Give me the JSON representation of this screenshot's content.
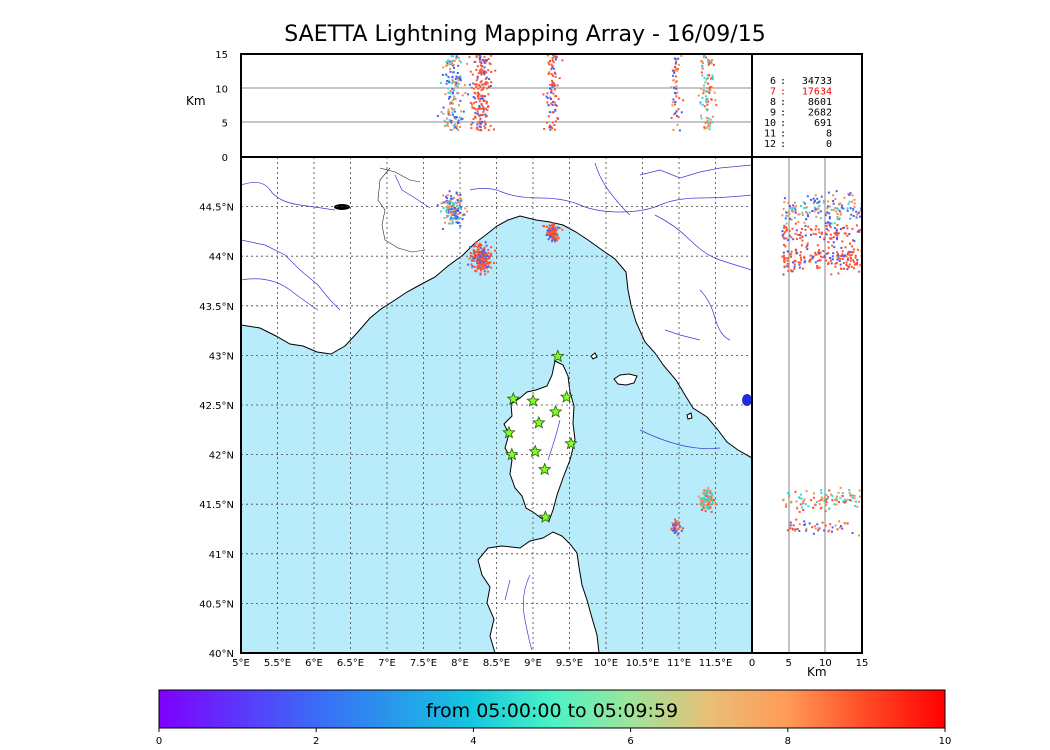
{
  "chart_data": {
    "type": "scatter",
    "title": "SAETTA Lightning Mapping Array - 16/09/15",
    "map": {
      "lon_range": [
        5,
        12
      ],
      "lat_range": [
        40,
        45
      ],
      "lon_ticks": [
        "5°E",
        "5.5°E",
        "6°E",
        "6.5°E",
        "7°E",
        "7.5°E",
        "8°E",
        "8.5°E",
        "9°E",
        "9.5°E",
        "10°E",
        "10.5°E",
        "11°E",
        "11.5°E"
      ],
      "lat_ticks": [
        "40°N",
        "40.5°N",
        "41°N",
        "41.5°N",
        "42°N",
        "42.5°N",
        "43°N",
        "43.5°N",
        "44°N",
        "44.5°N"
      ],
      "grid": true,
      "sea_color": "#b8ecfb",
      "land_color": "#ffffff",
      "station_markers": [
        {
          "lon": 9.34,
          "lat": 42.99
        },
        {
          "lon": 8.73,
          "lat": 42.56
        },
        {
          "lon": 9.0,
          "lat": 42.54
        },
        {
          "lon": 9.46,
          "lat": 42.58
        },
        {
          "lon": 9.31,
          "lat": 42.43
        },
        {
          "lon": 9.08,
          "lat": 42.32
        },
        {
          "lon": 8.67,
          "lat": 42.22
        },
        {
          "lon": 9.52,
          "lat": 42.11
        },
        {
          "lon": 9.03,
          "lat": 42.03
        },
        {
          "lon": 8.71,
          "lat": 42.0
        },
        {
          "lon": 9.16,
          "lat": 41.85
        },
        {
          "lon": 9.17,
          "lat": 41.37
        }
      ],
      "clusters": [
        {
          "lon": 7.88,
          "lat": 44.48,
          "r": 0.07,
          "n": 150,
          "colors": [
            "#f08f50",
            "#38d6d4",
            "#4a5df0"
          ]
        },
        {
          "lon": 8.27,
          "lat": 43.99,
          "r": 0.07,
          "n": 180,
          "colors": [
            "#ff5533",
            "#ff4f2a",
            "#4a5df0"
          ]
        },
        {
          "lon": 9.25,
          "lat": 44.25,
          "r": 0.05,
          "n": 90,
          "colors": [
            "#ff4f2a",
            "#ff5533",
            "#4a5df0"
          ]
        },
        {
          "lon": 11.38,
          "lat": 41.55,
          "r": 0.05,
          "n": 100,
          "colors": [
            "#ff4f2a",
            "#f08f50",
            "#38d6d4"
          ]
        },
        {
          "lon": 10.95,
          "lat": 41.28,
          "r": 0.04,
          "n": 50,
          "colors": [
            "#ff4f2a",
            "#f08f50",
            "#4a5df0"
          ]
        }
      ]
    },
    "alt_panel": {
      "ylabel": "Km",
      "ylim": [
        0,
        15
      ],
      "yticks": [
        "0",
        "5",
        "10",
        "15"
      ]
    },
    "lat_alt_panel": {
      "xlabel": "Km",
      "xlim": [
        0,
        15
      ],
      "xticks": [
        "0",
        "5",
        "10",
        "15"
      ]
    },
    "station_counts": [
      {
        "stations": "6",
        "count": "34733",
        "highlight": false
      },
      {
        "stations": "7",
        "count": "17634",
        "highlight": true
      },
      {
        "stations": "8",
        "count": "8601",
        "highlight": false
      },
      {
        "stations": "9",
        "count": "2682",
        "highlight": false
      },
      {
        "stations": "10",
        "count": "691",
        "highlight": false
      },
      {
        "stations": "11",
        "count": "8",
        "highlight": false
      },
      {
        "stations": "12",
        "count": "0",
        "highlight": false
      }
    ],
    "colorbar": {
      "label": "from 05:00:00 to 05:09:59",
      "range": [
        0,
        10
      ],
      "ticks": [
        "0",
        "2",
        "4",
        "6",
        "8",
        "10"
      ],
      "colormap": "rainbow"
    }
  }
}
